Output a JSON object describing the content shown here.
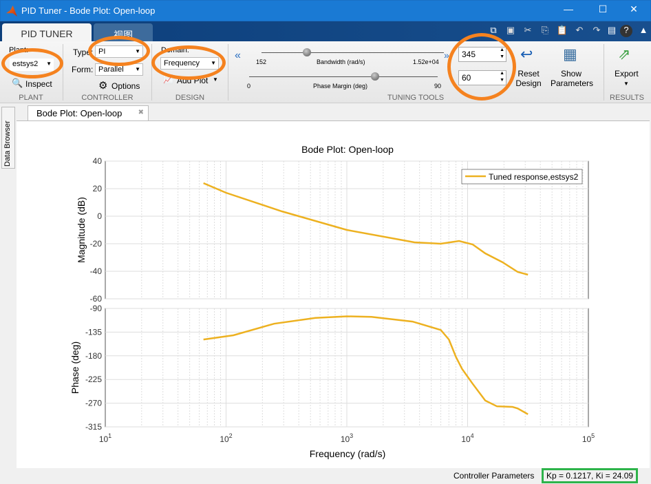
{
  "window": {
    "title": "PID Tuner - Bode Plot: Open-loop",
    "min": "—",
    "max": "☐",
    "close": "✕"
  },
  "tabs": [
    "PID TUNER",
    "视图"
  ],
  "plant": {
    "label": "Plant:",
    "value": "estsys2",
    "inspect": "Inspect",
    "section": "PLANT"
  },
  "controller": {
    "type_label": "Type:",
    "type": "PI",
    "form_label": "Form:",
    "form": "Parallel",
    "options": "Options",
    "section": "CONTROLLER"
  },
  "design": {
    "domain_label": "Domain:",
    "domain": "Frequency",
    "add_plot": "Add Plot",
    "section": "DESIGN"
  },
  "tuning": {
    "collapse": "«",
    "expand": "»",
    "bw_min": "152",
    "bw_label": "Bandwidth (rad/s)",
    "bw_max": "1.52e+04",
    "bw_value": "345",
    "bw_fraction": 0.25,
    "pm_min": "0",
    "pm_label": "Phase Margin (deg)",
    "pm_max": "90",
    "pm_value": "60",
    "pm_fraction": 0.667,
    "reset": "Reset Design",
    "show": "Show Parameters",
    "section": "TUNING TOOLS"
  },
  "results": {
    "export": "Export",
    "section": "RESULTS"
  },
  "sidebar": {
    "data_browser": "Data Browser"
  },
  "doc_tab": {
    "label": "Bode Plot: Open-loop",
    "close": "✖"
  },
  "status": {
    "label": "Controller Parameters",
    "value": "Kp = 0.1217, Ki = 24.09"
  },
  "colors": {
    "curve": "#edb120",
    "highlight": "#f5821f",
    "status_box": "#2db34a"
  },
  "chart_data": {
    "type": "line",
    "title": "Bode Plot: Open-loop",
    "xlabel": "Frequency  (rad/s)",
    "xscale": "log",
    "xlim": [
      10,
      100000
    ],
    "xticks": [
      "10^1",
      "10^2",
      "10^3",
      "10^4",
      "10^5"
    ],
    "legend": "Tuned response,estsys2",
    "legend_position": "top-right",
    "magnitude": {
      "ylabel": "Magnitude (dB)",
      "ylim": [
        -60,
        40
      ],
      "yticks": [
        40,
        20,
        0,
        -20,
        -40,
        -60
      ],
      "x": [
        65,
        100,
        290,
        1000,
        3630,
        6000,
        8500,
        11000,
        14000,
        19500,
        26000,
        31600
      ],
      "y": [
        24,
        17,
        3.5,
        -10,
        -19,
        -20,
        -18,
        -20.5,
        -27,
        -33.5,
        -40.5,
        -42.5
      ]
    },
    "phase": {
      "ylabel": "Phase (deg)",
      "ylim": [
        -315,
        -90
      ],
      "yticks": [
        -90,
        -135,
        -180,
        -225,
        -270,
        -315
      ],
      "x": [
        65,
        115,
        250,
        550,
        1000,
        1600,
        3500,
        6000,
        7000,
        8000,
        9000,
        11000,
        14000,
        17500,
        23500,
        26000,
        31600
      ],
      "y": [
        -149,
        -141,
        -119,
        -108,
        -105,
        -106,
        -115,
        -131,
        -149,
        -182,
        -205,
        -233,
        -265,
        -276,
        -277,
        -280,
        -291
      ]
    }
  }
}
